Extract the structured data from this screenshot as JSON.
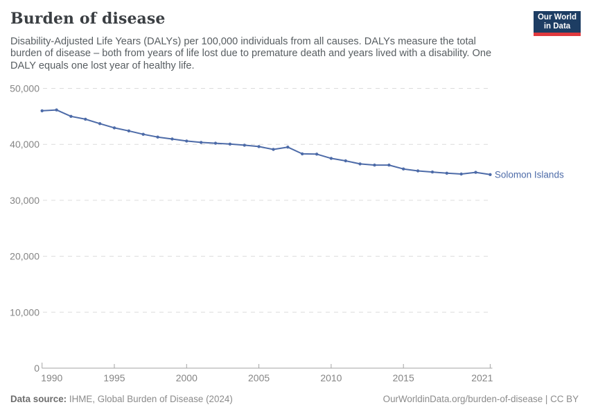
{
  "header": {
    "title": "Burden of disease",
    "logo": {
      "line1": "Our World",
      "line2": "in Data"
    }
  },
  "subtitle": {
    "full": "Disability-Adjusted Life Years (DALYs) per 100,000 individuals from all causes. DALYs measure the total burden of disease – both from years of life lost due to premature death and years lived with a disability. One DALY equals one lost year of healthy life.",
    "lines": [
      "Disability-Adjusted Life Years (DALYs) per 100,000 individuals from all causes. DALYs measure the total",
      "burden of disease – both from years of life lost due to premature death and years lived with a disability. One",
      "DALY equals one lost year of healthy life."
    ]
  },
  "footer": {
    "source_label": "Data source:",
    "source_value": "IHME, Global Burden of Disease (2024)",
    "attribution": "OurWorldinData.org/burden-of-disease | CC BY"
  },
  "colors": {
    "line": "#4d6ba8",
    "grid": "#dcdcdc",
    "axis": "#a3a3a3",
    "tick_label": "#858585",
    "title": "#3b3f43",
    "subtitle": "#575d61",
    "footer": "#8b8b8b",
    "logo_bg": "#1d3d63",
    "logo_red": "#e0393e"
  },
  "chart_data": {
    "type": "line",
    "title": "Burden of disease",
    "xlabel": "",
    "ylabel": "",
    "xlim": [
      1990,
      2021
    ],
    "ylim": [
      0,
      50000
    ],
    "xticks": [
      1990,
      1995,
      2000,
      2005,
      2010,
      2015,
      2021
    ],
    "yticks": [
      0,
      10000,
      20000,
      30000,
      40000,
      50000
    ],
    "grid": "horizontal-dashed",
    "legend": "end-of-line-label",
    "end_label": "Solomon Islands",
    "x": [
      1990,
      1991,
      1992,
      1993,
      1994,
      1995,
      1996,
      1997,
      1998,
      1999,
      2000,
      2001,
      2002,
      2003,
      2004,
      2005,
      2006,
      2007,
      2008,
      2009,
      2010,
      2011,
      2012,
      2013,
      2014,
      2015,
      2016,
      2017,
      2018,
      2019,
      2020,
      2021
    ],
    "series": [
      {
        "name": "Solomon Islands",
        "color": "#4d6ba8",
        "values": [
          46000,
          46150,
          45000,
          44500,
          43700,
          42950,
          42400,
          41800,
          41300,
          40950,
          40600,
          40350,
          40200,
          40050,
          39850,
          39600,
          39100,
          39500,
          38300,
          38250,
          37500,
          37050,
          36500,
          36300,
          36300,
          35600,
          35250,
          35050,
          34850,
          34700,
          35000,
          34600
        ]
      }
    ]
  }
}
